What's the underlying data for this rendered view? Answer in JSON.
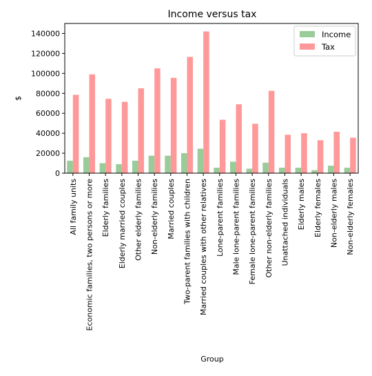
{
  "chart_data": {
    "type": "bar",
    "title": "Income versus tax",
    "xlabel": "Group",
    "ylabel": "$",
    "ylim": [
      0,
      150000
    ],
    "yticks": [
      0,
      20000,
      40000,
      60000,
      80000,
      100000,
      120000,
      140000
    ],
    "legend_position": "top-right",
    "grid": false,
    "categories": [
      "All family units",
      "Economic families, two persons or more",
      "Elderly families",
      "Elderly married couples",
      "Other elderly families",
      "Non-elderly families",
      "Married couples",
      "Two-parent families with children",
      "Married couples with other relatives",
      "Lone-parent families",
      "Male lone-parent families",
      "Female lone-parent families",
      "Other non-elderly families",
      "Unattached individuals",
      "Elderly males",
      "Elderly females",
      "Non-elderly males",
      "Non-elderly females"
    ],
    "series": [
      {
        "name": "Income",
        "color": "#99cc99",
        "values": [
          12500,
          16000,
          10000,
          9000,
          12500,
          17500,
          17500,
          20000,
          24500,
          5500,
          11500,
          4500,
          10500,
          5500,
          5500,
          3000,
          7500,
          5500
        ]
      },
      {
        "name": "Tax",
        "color": "#ff9999",
        "values": [
          78500,
          99000,
          74500,
          71500,
          85000,
          105000,
          95500,
          116500,
          142000,
          53500,
          69000,
          49500,
          82500,
          38500,
          40000,
          33000,
          41500,
          35500
        ]
      }
    ]
  }
}
